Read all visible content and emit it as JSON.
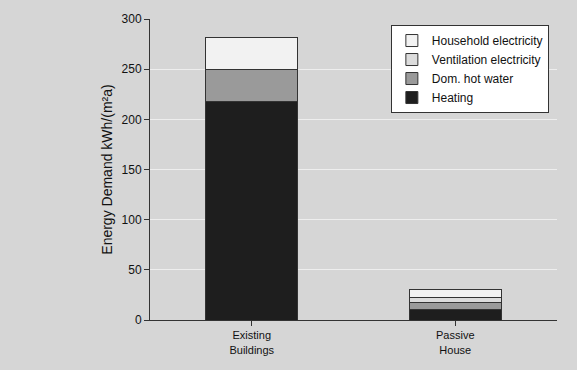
{
  "chart_data": {
    "type": "bar",
    "stacked": true,
    "y_label": "Energy Demand kWh/(m²a)",
    "categories": [
      "Existing Buildings",
      "Passive House"
    ],
    "series": [
      {
        "name": "Heating",
        "color": "#1e1e1e",
        "values": [
          218,
          10
        ]
      },
      {
        "name": "Dom. hot water",
        "color": "#9a9a9a",
        "values": [
          32,
          7
        ]
      },
      {
        "name": "Ventilation electricity",
        "color": "#dcdcdc",
        "values": [
          0,
          5
        ]
      },
      {
        "name": "Household electricity",
        "color": "#f2f2f2",
        "values": [
          32,
          8
        ]
      }
    ],
    "ylim": [
      0,
      300
    ],
    "yticks": [
      0,
      50,
      100,
      150,
      200,
      250,
      300
    ],
    "grid": true,
    "legend": "top-right"
  }
}
